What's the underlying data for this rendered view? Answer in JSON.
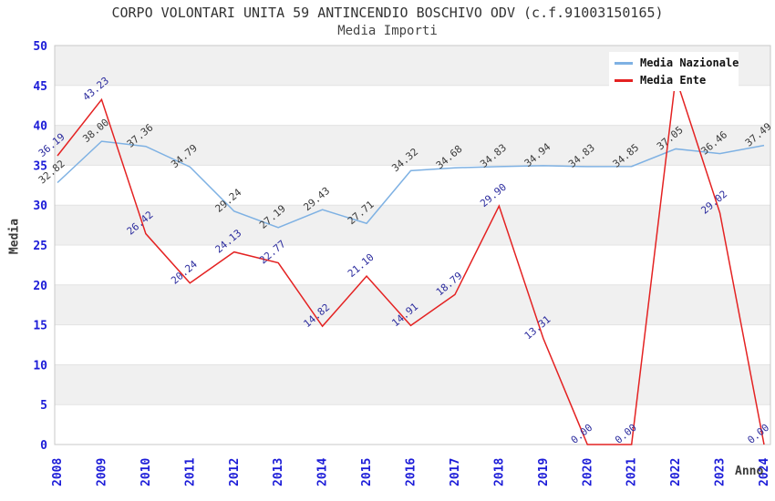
{
  "title": "CORPO VOLONTARI UNITA 59 ANTINCENDIO BOSCHIVO ODV (c.f.91003150165)",
  "subtitle": "Media Importi",
  "colors": {
    "nazionale_line": "#7eb1e3",
    "ente_line": "#e42222",
    "axis_tick": "#1c1cd8",
    "label_nazionale": "#3a3a3a",
    "label_ente": "#2c2c9e",
    "band": "#f0f0f0",
    "grid": "#e3e3e3",
    "plot_border": "#c8c8c8"
  },
  "legend": {
    "items": [
      {
        "label": "Media Nazionale",
        "color": "#7eb1e3"
      },
      {
        "label": "Media Ente",
        "color": "#e42222"
      }
    ]
  },
  "chart_data": {
    "type": "line",
    "title": "CORPO VOLONTARI UNITA 59 ANTINCENDIO BOSCHIVO ODV (c.f.91003150165)",
    "subtitle": "Media Importi",
    "xlabel": "Anno",
    "ylabel": "Media",
    "ylim": [
      0,
      50
    ],
    "ytick_step": 5,
    "grid": "horizontal-bands",
    "legend_position": "top-right",
    "categories": [
      "2008",
      "2009",
      "2010",
      "2011",
      "2012",
      "2013",
      "2014",
      "2015",
      "2016",
      "2017",
      "2018",
      "2019",
      "2020",
      "2021",
      "2022",
      "2023",
      "2024"
    ],
    "series": [
      {
        "name": "Media Nazionale",
        "color": "#7eb1e3",
        "label_color": "#3a3a3a",
        "values": [
          32.82,
          38.0,
          37.36,
          34.79,
          29.24,
          27.19,
          29.43,
          27.71,
          34.32,
          34.68,
          34.83,
          34.94,
          34.83,
          34.85,
          37.05,
          36.46,
          37.49
        ],
        "labels": [
          "32.82",
          "38.00",
          "37.36",
          "34.79",
          "29.24",
          "27.19",
          "29.43",
          "27.71",
          "34.32",
          "34.68",
          "34.83",
          "34.94",
          "34.83",
          "34.85",
          "37.05",
          "36.46",
          "37.49"
        ]
      },
      {
        "name": "Media Ente",
        "color": "#e42222",
        "label_color": "#2c2c9e",
        "values": [
          36.19,
          43.23,
          26.42,
          20.24,
          24.13,
          22.77,
          14.82,
          21.1,
          14.91,
          18.79,
          29.9,
          13.31,
          0.0,
          0.0,
          46.0,
          29.02,
          0.0
        ],
        "labels": [
          "36.19",
          "43.23",
          "26.42",
          "20.24",
          "24.13",
          "22.77",
          "14.82",
          "21.10",
          "14.91",
          "18.79",
          "29.90",
          "13.31",
          "0.00",
          "0.00",
          "",
          "29.02",
          "0.00"
        ]
      }
    ]
  }
}
